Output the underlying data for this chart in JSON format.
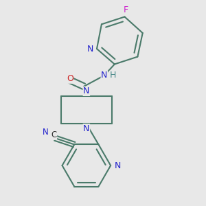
{
  "background_color": "#e8e8e8",
  "bond_color": "#4a7a6a",
  "bond_width": 1.5,
  "atom_colors": {
    "N": "#2222cc",
    "O": "#cc2222",
    "F": "#cc22cc",
    "C": "#333333",
    "H": "#4a8a8a"
  },
  "font_size": 9,
  "fig_width": 3.0,
  "fig_height": 3.0,
  "dpi": 100
}
